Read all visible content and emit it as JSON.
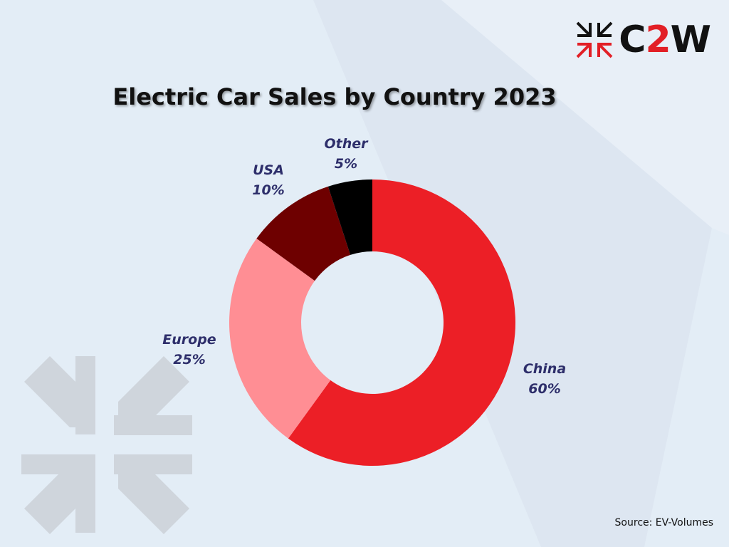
{
  "brand": {
    "logo_text_c": "C",
    "logo_text_2": "2",
    "logo_text_w": "W",
    "logo_icon": "arrows-cross-icon",
    "accent_color": "#e21f26"
  },
  "chart_data": {
    "type": "pie",
    "variant": "donut",
    "title": "Electric Car Sales by Country 2023",
    "unit": "%",
    "slices": [
      {
        "label": "China",
        "value": 60,
        "value_label": "60%",
        "color": "#ec1f26"
      },
      {
        "label": "Europe",
        "value": 25,
        "value_label": "25%",
        "color": "#ff8e94"
      },
      {
        "label": "USA",
        "value": 10,
        "value_label": "10%",
        "color": "#6e0000"
      },
      {
        "label": "Other",
        "value": 5,
        "value_label": "5%",
        "color": "#000000"
      }
    ]
  },
  "footer": {
    "source": "Source: EV-Volumes"
  }
}
